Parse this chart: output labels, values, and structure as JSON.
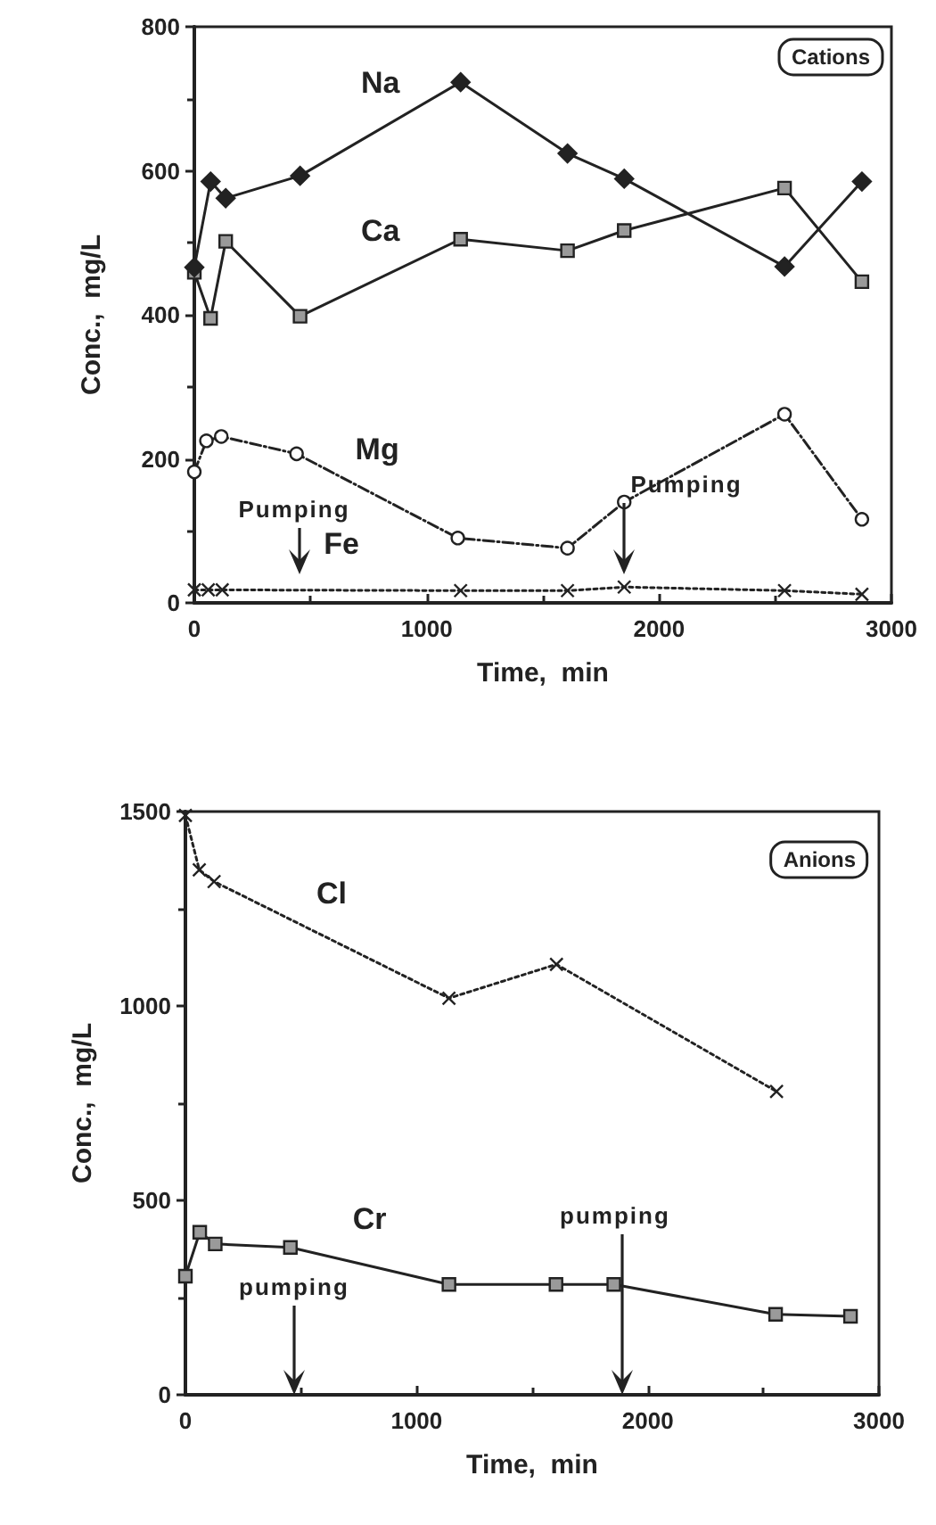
{
  "chart_data": [
    {
      "type": "line",
      "title": "Cations",
      "xlabel": "Time,  min",
      "ylabel": "Conc.,  mg/L",
      "xlim": [
        0,
        3000
      ],
      "xticks": [
        0,
        1000,
        2000,
        3000
      ],
      "ylim": [
        0,
        800
      ],
      "yticks": [
        0,
        200,
        400,
        600,
        800
      ],
      "series": [
        {
          "name": "Na",
          "color": "#222222",
          "marker": "diamond",
          "line_style": "solid",
          "x": [
            0,
            70,
            135,
            455,
            1146,
            1606,
            1850,
            2540,
            2873
          ],
          "values": [
            466,
            585,
            562,
            593,
            723,
            624,
            589,
            467,
            585
          ]
        },
        {
          "name": "Ca",
          "color": "#222222",
          "marker": "square",
          "line_style": "solid",
          "x": [
            0,
            70,
            135,
            455,
            1146,
            1606,
            1850,
            2540,
            2873
          ],
          "values": [
            459,
            395,
            502,
            398,
            505,
            489,
            517,
            576,
            446
          ]
        },
        {
          "name": "Mg",
          "color": "#222222",
          "marker": "circle",
          "line_style": "dashed",
          "x": [
            0,
            52,
            116,
            440,
            1134,
            1606,
            1850,
            2540,
            2873
          ],
          "values": [
            182,
            225,
            231,
            207,
            90,
            76,
            140,
            262,
            116
          ]
        },
        {
          "name": "Fe",
          "color": "#222222",
          "marker": "cross",
          "line_style": "dotted",
          "x": [
            0,
            60,
            120,
            1146,
            1606,
            1850,
            2540,
            2873
          ],
          "values": [
            18,
            18,
            18,
            17,
            17,
            22,
            17,
            12
          ]
        }
      ],
      "annotations": [
        "Pumping",
        "Pumping"
      ]
    },
    {
      "type": "line",
      "title": "Anions",
      "xlabel": "Time,  min",
      "ylabel": "Conc.,  mg/L",
      "xlim": [
        0,
        3000
      ],
      "xticks": [
        0,
        1000,
        2000,
        3000
      ],
      "ylim": [
        0,
        1500
      ],
      "yticks": [
        0,
        500,
        1000,
        1500
      ],
      "series": [
        {
          "name": "Cl",
          "color": "#222222",
          "marker": "cross",
          "line_style": "dotted",
          "x": [
            0,
            60,
            124,
            1140,
            1605,
            2557
          ],
          "values": [
            1490,
            1350,
            1320,
            1020,
            1107,
            780
          ]
        },
        {
          "name": "Cr",
          "color": "#222222",
          "marker": "square",
          "line_style": "solid",
          "x": [
            0,
            62,
            129,
            454,
            1140,
            1603,
            1853,
            2553,
            2877
          ],
          "values": [
            305,
            418,
            388,
            379,
            284,
            284,
            284,
            207,
            202
          ]
        }
      ],
      "annotations": [
        "pumping",
        "pumping"
      ]
    }
  ]
}
